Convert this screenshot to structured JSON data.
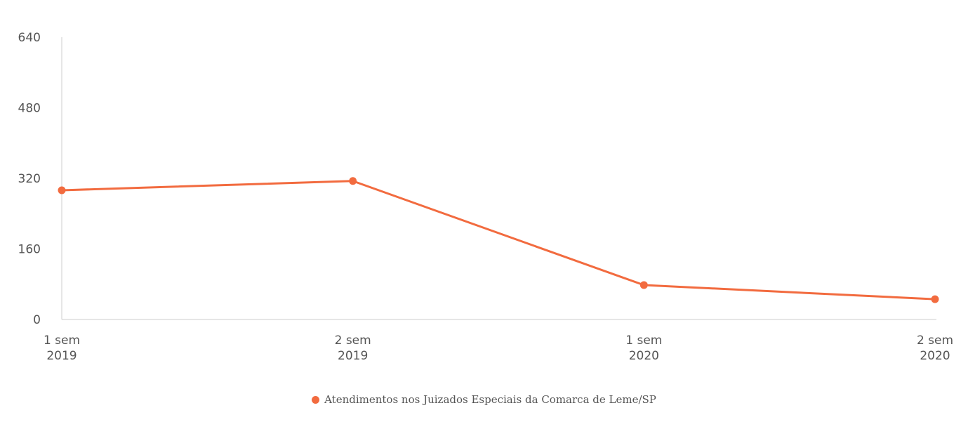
{
  "chart_data": {
    "type": "line",
    "title": "",
    "xlabel": "",
    "ylabel": "",
    "categories": [
      [
        "1 sem",
        "2019"
      ],
      [
        "2 sem",
        "2019"
      ],
      [
        "1 sem",
        "2020"
      ],
      [
        "2 sem",
        "2020"
      ]
    ],
    "series": [
      {
        "name": "Atendimentos nos Juizados Especiais da Comarca de Leme/SP",
        "values": [
          293,
          314,
          78,
          46
        ],
        "color": "#f26b3f"
      }
    ],
    "yticks": [
      0,
      160,
      320,
      480,
      640
    ],
    "ylim": [
      0,
      640
    ],
    "grid": false,
    "legend_position": "bottom-center"
  }
}
